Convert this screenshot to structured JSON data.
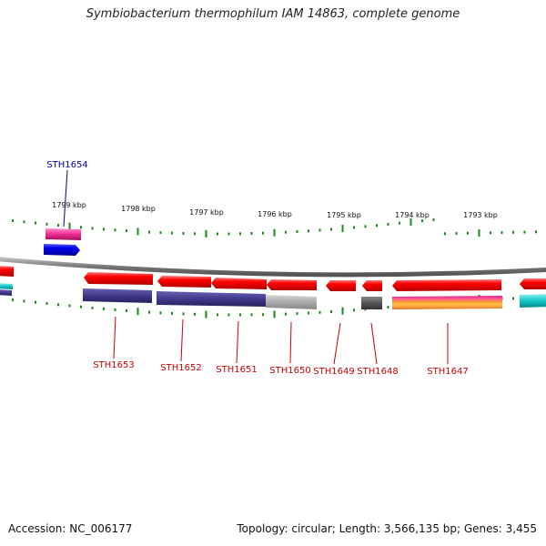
{
  "title": "Symbiobacterium thermophilum IAM 14863, complete genome",
  "footer": {
    "accession": "Accession: NC_006177",
    "summary": "Topology: circular; Length: 3,566,135 bp; Genes: 3,455"
  },
  "colors": {
    "backbone": "#808080",
    "tick": "#1a8a1a",
    "gene_forward": "#0000ee",
    "gene_reverse": "#ff0000",
    "label_forward": "#000099",
    "label_reverse": "#cc0000"
  },
  "kbp_markers": [
    "1799 kbp",
    "1798 kbp",
    "1797 kbp",
    "1796 kbp",
    "1795 kbp",
    "1794 kbp",
    "1793 kbp"
  ],
  "gene_labels": [
    {
      "name": "STH1654",
      "strand": "forward"
    },
    {
      "name": "STH1653",
      "strand": "reverse"
    },
    {
      "name": "STH1652",
      "strand": "reverse"
    },
    {
      "name": "STH1651",
      "strand": "reverse"
    },
    {
      "name": "STH1650",
      "strand": "reverse"
    },
    {
      "name": "STH1649",
      "strand": "reverse"
    },
    {
      "name": "STH1648",
      "strand": "reverse"
    },
    {
      "name": "STH1647",
      "strand": "reverse"
    }
  ]
}
